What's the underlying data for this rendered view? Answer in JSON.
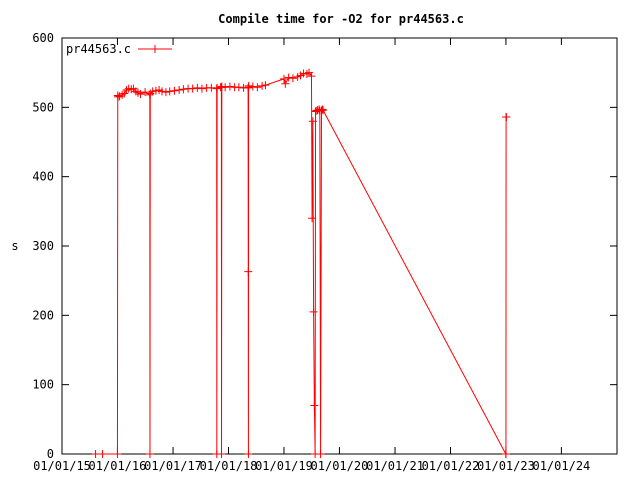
{
  "chart_data": {
    "type": "line",
    "title": "Compile time for -O2 for pr44563.c",
    "xlabel": "",
    "ylabel": "s",
    "ylim": [
      0,
      600
    ],
    "yticks": [
      0,
      100,
      200,
      300,
      400,
      500,
      600
    ],
    "xlim": [
      "2015-01-01",
      "2025-01-01"
    ],
    "xtick_labels": [
      "01/01/15",
      "01/01/16",
      "01/01/17",
      "01/01/18",
      "01/01/19",
      "01/01/20",
      "01/01/21",
      "01/01/22",
      "01/01/23",
      "01/01/24"
    ],
    "xtick_dates": [
      "2015-01-01",
      "2016-01-01",
      "2017-01-01",
      "2018-01-01",
      "2019-01-01",
      "2020-01-01",
      "2021-01-01",
      "2022-01-01",
      "2023-01-01",
      "2024-01-01"
    ],
    "legend": {
      "position": "top-left",
      "entries": [
        "pr44563.c"
      ]
    },
    "grid": false,
    "series_color": "#ff0000",
    "series": [
      {
        "name": "pr44563.c",
        "x": [
          "2015-08-10",
          "2015-09-25",
          "2016-01-01",
          "2016-01-03",
          "2016-01-05",
          "2016-01-15",
          "2016-02-01",
          "2016-02-15",
          "2016-03-01",
          "2016-03-15",
          "2016-04-01",
          "2016-04-15",
          "2016-05-01",
          "2016-05-15",
          "2016-06-01",
          "2016-07-01",
          "2016-08-01",
          "2016-08-02",
          "2016-08-04",
          "2016-08-20",
          "2016-09-10",
          "2016-10-01",
          "2016-10-20",
          "2016-11-15",
          "2016-12-10",
          "2017-01-10",
          "2017-02-10",
          "2017-03-10",
          "2017-04-10",
          "2017-05-10",
          "2017-06-10",
          "2017-07-10",
          "2017-08-10",
          "2017-09-10",
          "2017-10-15",
          "2017-10-16",
          "2017-10-18",
          "2017-11-10",
          "2017-11-15",
          "2017-11-16",
          "2017-11-18",
          "2017-12-10",
          "2018-01-10",
          "2018-02-10",
          "2018-03-10",
          "2018-04-10",
          "2018-05-10",
          "2018-05-11",
          "2018-05-12",
          "2018-05-13",
          "2018-05-14",
          "2018-06-10",
          "2018-07-10",
          "2018-08-10",
          "2018-09-01",
          "2019-01-01",
          "2019-01-10",
          "2019-02-01",
          "2019-03-01",
          "2019-04-01",
          "2019-04-20",
          "2019-05-10",
          "2019-06-01",
          "2019-06-15",
          "2019-07-01",
          "2019-07-05",
          "2019-07-10",
          "2019-07-15",
          "2019-07-20",
          "2019-07-25",
          "2019-07-28",
          "2019-08-01",
          "2019-08-10",
          "2019-08-20",
          "2019-08-25",
          "2019-08-30",
          "2019-09-05",
          "2019-09-10",
          "2019-09-15",
          "2022-12-31",
          "2023-01-01",
          "2023-01-02",
          "2023-01-04"
        ],
        "y": [
          0,
          0,
          0,
          517,
          515,
          516,
          518,
          520,
          525,
          527,
          526,
          527,
          523,
          521,
          519,
          522,
          518,
          0,
          520,
          523,
          524,
          525,
          523,
          522,
          523,
          524,
          525,
          526,
          527,
          527,
          528,
          527,
          528,
          528,
          527,
          0,
          528,
          529,
          529,
          0,
          530,
          529,
          530,
          529,
          529,
          528,
          528,
          263,
          0,
          529,
          531,
          530,
          529,
          531,
          532,
          541,
          534,
          543,
          542,
          544,
          546,
          549,
          548,
          550,
          545,
          340,
          480,
          205,
          70,
          0,
          494,
          495,
          496,
          497,
          495,
          0,
          495,
          497,
          496,
          0,
          0,
          486,
          486
        ]
      }
    ]
  }
}
